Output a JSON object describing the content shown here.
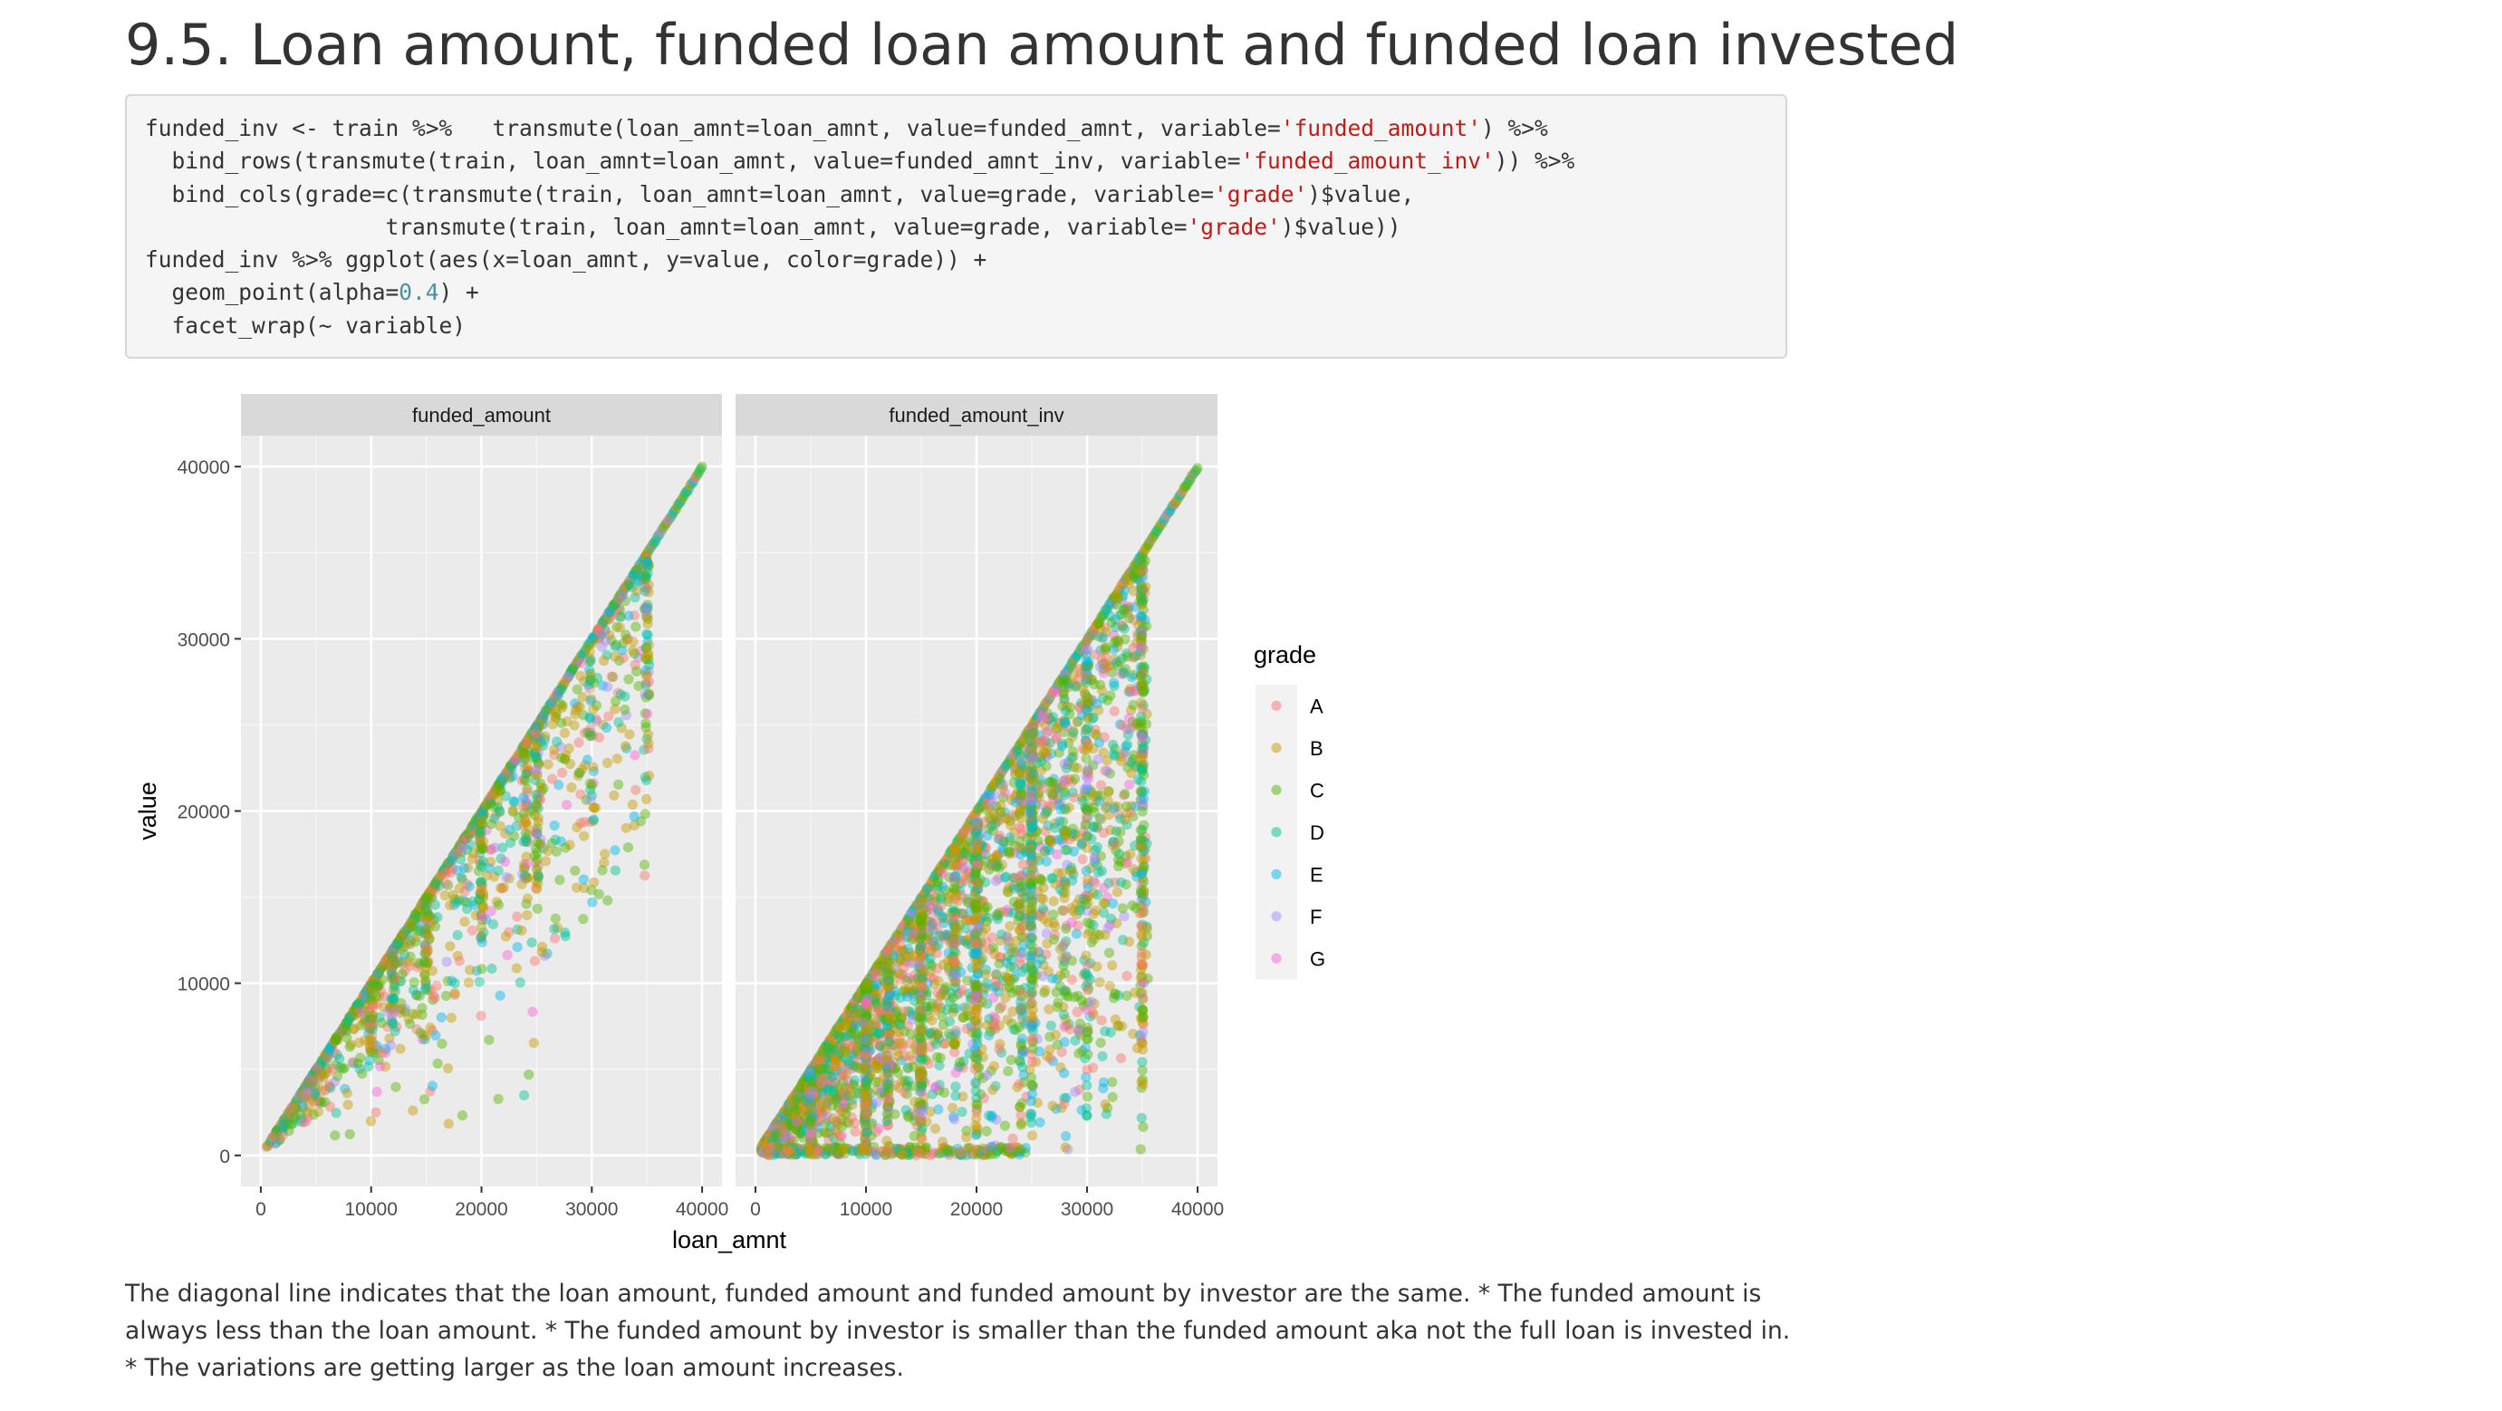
{
  "heading": "9.5. Loan amount, funded loan amount and funded loan invested",
  "code": {
    "l1a": "funded_inv <- train %>%   transmute(loan_amnt=loan_amnt, value=funded_amnt, variable=",
    "l1s": "'funded_amount'",
    "l1b": ") %>%",
    "l2a": "  bind_rows(transmute(train, loan_amnt=loan_amnt, value=funded_amnt_inv, variable=",
    "l2s": "'funded_amount_inv'",
    "l2b": ")) %>%",
    "l3a": "  bind_cols(grade=c(transmute(train, loan_amnt=loan_amnt, value=grade, variable=",
    "l3s": "'grade'",
    "l3b": ")$value,",
    "l4a": "                  transmute(train, loan_amnt=loan_amnt, value=grade, variable=",
    "l4s": "'grade'",
    "l4b": ")$value))",
    "l5": "funded_inv %>% ggplot(aes(x=loan_amnt, y=value, color=grade)) +",
    "l6a": "  geom_point(alpha=",
    "l6n": "0.4",
    "l6b": ") +",
    "l7": "  facet_wrap(~ variable)"
  },
  "chart_data": {
    "type": "scatter",
    "facets": [
      "funded_amount",
      "funded_amount_inv"
    ],
    "xlabel": "loan_amnt",
    "ylabel": "value",
    "xlim": [
      0,
      40000
    ],
    "ylim": [
      0,
      40000
    ],
    "x_ticks": [
      0,
      10000,
      20000,
      30000,
      40000
    ],
    "y_ticks": [
      0,
      10000,
      20000,
      30000,
      40000
    ],
    "x_tick_labels": [
      "0",
      "10000",
      "20000",
      "30000",
      "40000"
    ],
    "y_tick_labels": [
      "0",
      "10000",
      "20000",
      "30000",
      "40000"
    ],
    "grid": true,
    "legend": {
      "title": "grade",
      "position": "right",
      "entries": [
        "A",
        "B",
        "C",
        "D",
        "E",
        "F",
        "G"
      ],
      "colors": [
        "#f8766d",
        "#c49a00",
        "#53b400",
        "#00c094",
        "#00b6eb",
        "#a58aff",
        "#fb61d7"
      ]
    },
    "point_alpha": 0.4,
    "relationship": "value <= loan_amnt; dense diagonal where value = loan_amnt; spread below the diagonal grows with loan_amnt, larger for funded_amount_inv"
  },
  "caption": "The diagonal line indicates that the loan amount, funded amount and funded amount by investor are the same. * The funded amount is always less than the loan amount. * The funded amount by investor is smaller than the funded amount aka not the full loan is invested in. * The variations are getting larger as the loan amount increases."
}
